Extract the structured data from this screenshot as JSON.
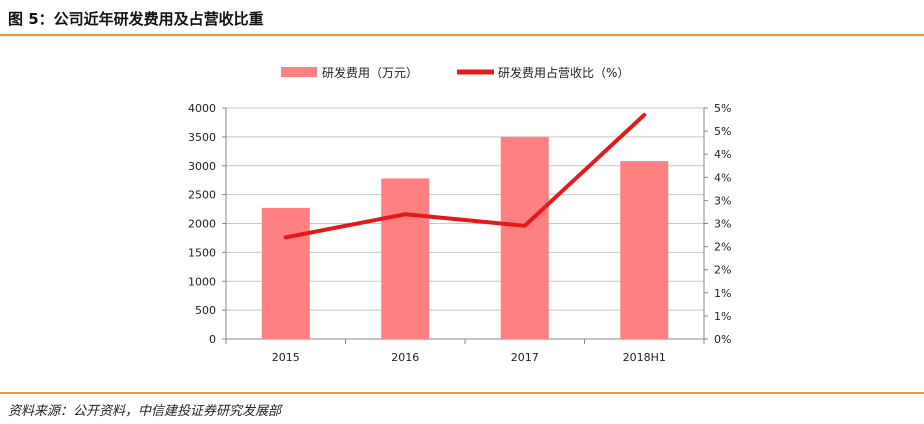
{
  "header": {
    "title": "图 5：公司近年研发费用及占营收比重"
  },
  "footer": {
    "source": "资料来源：公开资料，中信建投证券研究发展部"
  },
  "chart_data": {
    "type": "bar",
    "categories": [
      "2015",
      "2016",
      "2017",
      "2018H1"
    ],
    "series": [
      {
        "name": "研发费用（万元）",
        "type": "bar",
        "axis": "left",
        "color": "#ff8080",
        "values": [
          2270,
          2780,
          3500,
          3080
        ]
      },
      {
        "name": "研发费用占营收比（%）",
        "type": "line",
        "axis": "right",
        "color": "#e21a1a",
        "values": [
          2.2,
          2.7,
          2.45,
          4.85
        ]
      }
    ],
    "y_left": {
      "ylim": [
        0,
        4000
      ],
      "ticks": [
        0,
        500,
        1000,
        1500,
        2000,
        2500,
        3000,
        3500,
        4000
      ],
      "tick_labels": [
        "0",
        "500",
        "1000",
        "1500",
        "2000",
        "2500",
        "3000",
        "3500",
        "4000"
      ]
    },
    "y_right": {
      "ylim": [
        0,
        5
      ],
      "ticks": [
        0,
        0.5,
        1,
        1.5,
        2,
        2.5,
        3,
        3.5,
        4,
        4.5,
        5
      ],
      "tick_labels": [
        "0%",
        "1%",
        "1%",
        "2%",
        "2%",
        "3%",
        "3%",
        "4%",
        "4%",
        "5%",
        "5%"
      ]
    },
    "grid": true,
    "legend_position": "top"
  }
}
